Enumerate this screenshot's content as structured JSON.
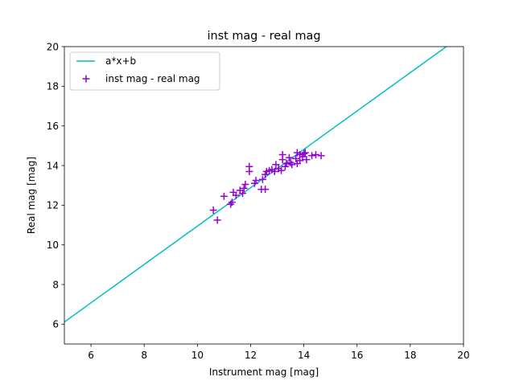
{
  "chart_data": {
    "type": "scatter",
    "title": "inst mag - real mag",
    "xlabel": "Instrument mag [mag]",
    "ylabel": "Real mag [mag]",
    "xlim": [
      5,
      20
    ],
    "ylim": [
      5,
      20
    ],
    "xticks": [
      6,
      8,
      10,
      12,
      14,
      16,
      18,
      20
    ],
    "yticks": [
      6,
      8,
      10,
      12,
      14,
      16,
      18,
      20
    ],
    "grid": false,
    "legend_position": "top-left",
    "fit_line": {
      "name": "a*x+b",
      "color": "#00bfbf",
      "slope": 0.9677,
      "intercept": 1.2702
    },
    "series": [
      {
        "name": "inst mag - real mag",
        "color": "#9400d3",
        "marker": "+",
        "points": [
          [
            10.6,
            11.75
          ],
          [
            10.75,
            11.25
          ],
          [
            11.0,
            12.45
          ],
          [
            11.25,
            12.05
          ],
          [
            11.3,
            12.15
          ],
          [
            11.35,
            12.65
          ],
          [
            11.45,
            12.5
          ],
          [
            11.6,
            12.75
          ],
          [
            11.7,
            12.6
          ],
          [
            11.75,
            12.85
          ],
          [
            11.8,
            13.05
          ],
          [
            11.95,
            13.95
          ],
          [
            11.95,
            13.7
          ],
          [
            12.15,
            13.1
          ],
          [
            12.2,
            13.25
          ],
          [
            12.4,
            12.8
          ],
          [
            12.45,
            13.3
          ],
          [
            12.55,
            12.8
          ],
          [
            12.55,
            13.55
          ],
          [
            12.6,
            13.7
          ],
          [
            12.7,
            13.75
          ],
          [
            12.8,
            13.8
          ],
          [
            12.9,
            13.7
          ],
          [
            12.95,
            14.05
          ],
          [
            13.05,
            13.85
          ],
          [
            13.15,
            13.75
          ],
          [
            13.2,
            14.3
          ],
          [
            13.2,
            14.55
          ],
          [
            13.3,
            13.95
          ],
          [
            13.35,
            14.1
          ],
          [
            13.45,
            14.4
          ],
          [
            13.5,
            14.15
          ],
          [
            13.55,
            14.05
          ],
          [
            13.7,
            14.35
          ],
          [
            13.75,
            14.65
          ],
          [
            13.75,
            14.1
          ],
          [
            13.85,
            14.55
          ],
          [
            13.85,
            14.25
          ],
          [
            13.95,
            14.45
          ],
          [
            14.0,
            14.6
          ],
          [
            14.05,
            14.65
          ],
          [
            14.1,
            14.3
          ],
          [
            14.3,
            14.5
          ],
          [
            14.45,
            14.55
          ],
          [
            14.65,
            14.5
          ]
        ]
      }
    ]
  }
}
